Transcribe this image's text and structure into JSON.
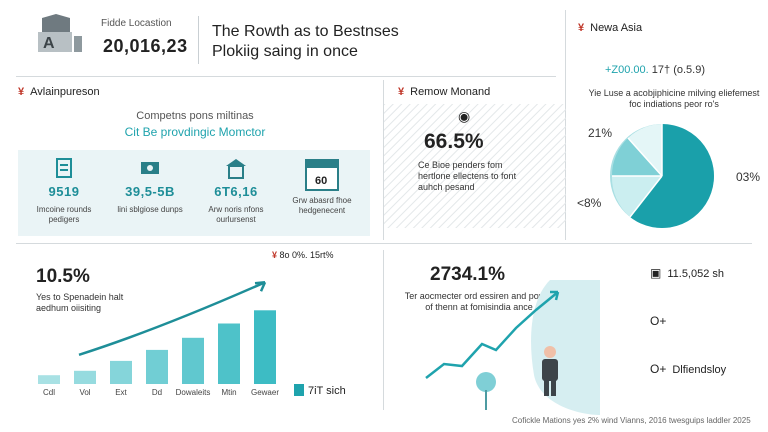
{
  "header": {
    "logo_text": "A",
    "location_label": "Fidde Locastion",
    "number": "20,016,23",
    "title": "The Rowth as to Bestnses Plokiig saing in once"
  },
  "sections": {
    "top_left_title": "Avlainpureson",
    "top_mid_title": "Remow Monand",
    "top_right_title": "Newa Asia"
  },
  "asia": {
    "value_accent": "+Z00.00.",
    "value_rest": "17† (o.5.9)",
    "description": "Yie Luse a acobjiphicine milving eliefemest foc indiations peor ro's",
    "pie_labels": [
      "21%",
      "03%",
      "<8%"
    ]
  },
  "top_left": {
    "subtitle": "Competns pons miltinas",
    "subtitle_highlight": "Cit Be provdingic Momctor",
    "stats": [
      {
        "value": "9519",
        "label": "Imcoine rounds pedigers",
        "icon": "badge-icon"
      },
      {
        "value": "39,5-5B",
        "label": "lini sblgiose dunps",
        "icon": "money-icon"
      },
      {
        "value": "6T6,16",
        "label": "Arw noris nfons ourlursenst",
        "icon": "store-icon"
      },
      {
        "value": "60",
        "label": "Grw abasrd fhoe hedgenecent",
        "icon": "calendar-icon"
      }
    ]
  },
  "top_mid": {
    "pct": "66.5%",
    "description": "Ce Bioe penders fom hertlone ellectens to font auhch pesand"
  },
  "bottom_left": {
    "big": "10.5%",
    "description": "Yes to Spenadein halt aedhum oiisiting",
    "legend": "8o 0%. 15rt%",
    "key": "7iT sich",
    "bar_color": "#3dbcc4"
  },
  "bottom_mid": {
    "big": "2734.1%",
    "description": "Ter aocmecter ord essiren and power of thenn at fomisindia ance"
  },
  "bottom_right": {
    "items": [
      {
        "icon": "chart-icon",
        "text": "11.5,052 sh"
      },
      {
        "icon": "key-icon",
        "text": ""
      },
      {
        "icon": "key-icon",
        "text": "Dlfiendsloy"
      }
    ]
  },
  "footer": "Cofickle Mations yes 2% wind Vianns, 2016 twesguips laddler 2025",
  "chart_data": [
    {
      "type": "bar",
      "categories": [
        "Cdl",
        "Vol",
        "Ext",
        "Dd",
        "Dowaleits",
        "Mtin",
        "Gewaer"
      ],
      "values": [
        8,
        12,
        21,
        31,
        42,
        55,
        67
      ],
      "title": "",
      "xlabel": "",
      "ylabel": "",
      "ylim": [
        0,
        100
      ],
      "grid": false
    }
  ]
}
